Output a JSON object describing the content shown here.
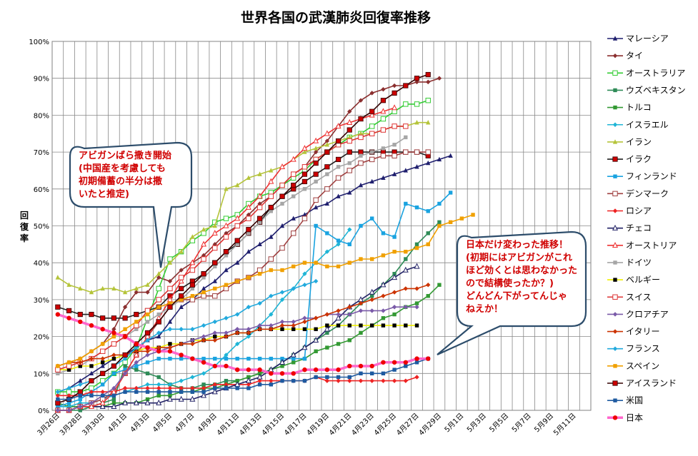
{
  "chart_data": {
    "type": "line",
    "title": "世界各国の武漢肺炎回復率推移",
    "ylabel": "回復率",
    "xlabel": "",
    "ylim": [
      0,
      1
    ],
    "y_ticks": [
      "0%",
      "10%",
      "20%",
      "30%",
      "40%",
      "50%",
      "60%",
      "70%",
      "80%",
      "90%",
      "100%"
    ],
    "x_ticks": [
      "3月26日",
      "3月28日",
      "3月30日",
      "4月1日",
      "4月3日",
      "4月5日",
      "4月7日",
      "4月9日",
      "4月11日",
      "4月13日",
      "4月15日",
      "4月17日",
      "4月19日",
      "4月21日",
      "4月23日",
      "4月25日",
      "4月27日",
      "4月29日",
      "5月1日",
      "5月3日",
      "5月5日",
      "5月7日",
      "5月9日",
      "5月11日"
    ],
    "grid": true,
    "legend_position": "right",
    "series": [
      {
        "name": "マレーシア",
        "color": "#1f1f6e",
        "marker": "triangle",
        "values": [
          0.05,
          0.06,
          0.08,
          0.1,
          0.12,
          0.14,
          0.15,
          0.17,
          0.19,
          0.2,
          0.24,
          0.28,
          0.3,
          0.33,
          0.35,
          0.38,
          0.4,
          0.43,
          0.45,
          0.47,
          0.5,
          0.52,
          0.53,
          0.55,
          0.56,
          0.58,
          0.59,
          0.61,
          0.62,
          0.63,
          0.64,
          0.65,
          0.66,
          0.67,
          0.68,
          0.69
        ]
      },
      {
        "name": "タイ",
        "color": "#8b2f2f",
        "marker": "diamond",
        "values": [
          0.12,
          0.13,
          0.14,
          0.16,
          0.18,
          0.22,
          0.28,
          0.32,
          0.32,
          0.36,
          0.35,
          0.38,
          0.4,
          0.42,
          0.45,
          0.48,
          0.5,
          0.53,
          0.56,
          0.58,
          0.61,
          0.64,
          0.66,
          0.7,
          0.73,
          0.77,
          0.81,
          0.84,
          0.86,
          0.87,
          0.88,
          0.88,
          0.89,
          0.89,
          0.9
        ]
      },
      {
        "name": "オーストラリア",
        "color": "#33cc33",
        "marker": "square-open",
        "values": [
          0.05,
          0.05,
          0.05,
          0.06,
          0.08,
          0.1,
          0.13,
          0.17,
          0.25,
          0.33,
          0.41,
          0.43,
          0.46,
          0.48,
          0.51,
          0.52,
          0.53,
          0.56,
          0.58,
          0.59,
          0.61,
          0.63,
          0.65,
          0.68,
          0.7,
          0.72,
          0.74,
          0.75,
          0.77,
          0.79,
          0.81,
          0.83,
          0.83,
          0.84
        ]
      },
      {
        "name": "ウズベキスタン",
        "color": "#2e8b57",
        "marker": "square",
        "values": [
          0.0,
          0.0,
          0.0,
          0.01,
          0.02,
          0.03,
          0.12,
          0.11,
          0.1,
          0.09,
          0.07,
          0.06,
          0.06,
          0.07,
          0.07,
          0.08,
          0.08,
          0.09,
          0.1,
          0.11,
          0.13,
          0.15,
          0.17,
          0.19,
          0.21,
          0.23,
          0.26,
          0.29,
          0.31,
          0.34,
          0.37,
          0.41,
          0.45,
          0.48,
          0.51
        ]
      },
      {
        "name": "トルコ",
        "color": "#339933",
        "marker": "square",
        "values": [
          0.02,
          0.01,
          0.01,
          0.01,
          0.01,
          0.02,
          0.02,
          0.02,
          0.03,
          0.04,
          0.04,
          0.05,
          0.05,
          0.06,
          0.06,
          0.07,
          0.08,
          0.09,
          0.1,
          0.11,
          0.12,
          0.13,
          0.14,
          0.16,
          0.17,
          0.18,
          0.19,
          0.21,
          0.23,
          0.25,
          0.26,
          0.28,
          0.29,
          0.31,
          0.34
        ]
      },
      {
        "name": "イスラエル",
        "color": "#1fb5d6",
        "marker": "diamond",
        "values": [
          0.01,
          0.01,
          0.02,
          0.02,
          0.03,
          0.04,
          0.05,
          0.06,
          0.07,
          0.07,
          0.07,
          0.08,
          0.09,
          0.1,
          0.12,
          0.15,
          0.18,
          0.2,
          0.23,
          0.26,
          0.3,
          0.33,
          0.37,
          0.4,
          0.43,
          0.45,
          0.49
        ]
      },
      {
        "name": "イラン",
        "color": "#b5c43a",
        "marker": "triangle",
        "values": [
          0.36,
          0.34,
          0.33,
          0.32,
          0.33,
          0.33,
          0.32,
          0.33,
          0.34,
          0.37,
          0.4,
          0.43,
          0.47,
          0.49,
          0.5,
          0.6,
          0.61,
          0.63,
          0.64,
          0.65,
          0.66,
          0.68,
          0.7,
          0.71,
          0.72,
          0.73,
          0.74,
          0.75,
          0.75,
          0.76,
          0.77,
          0.77,
          0.78,
          0.78
        ]
      },
      {
        "name": "イラク",
        "color": "#222222",
        "marker": "square-red",
        "values": [
          0.28,
          0.27,
          0.26,
          0.26,
          0.25,
          0.25,
          0.25,
          0.26,
          0.27,
          0.28,
          0.31,
          0.33,
          0.35,
          0.37,
          0.4,
          0.43,
          0.45,
          0.48,
          0.51,
          0.55,
          0.58,
          0.6,
          0.62,
          0.64,
          0.66,
          0.68,
          0.7,
          0.7,
          0.7,
          0.7,
          0.7,
          0.7,
          0.7,
          0.69
        ]
      },
      {
        "name": "フィンランド",
        "color": "#1aa3e0",
        "marker": "square",
        "values": [
          0.01,
          0.02,
          0.03,
          0.05,
          0.07,
          0.1,
          0.11,
          0.12,
          0.13,
          0.14,
          0.14,
          0.14,
          0.14,
          0.14,
          0.14,
          0.14,
          0.14,
          0.14,
          0.14,
          0.14,
          0.14,
          0.14,
          0.14,
          0.5,
          0.48,
          0.46,
          0.45,
          0.5,
          0.52,
          0.48,
          0.47,
          0.56,
          0.55,
          0.54,
          0.56,
          0.59
        ]
      },
      {
        "name": "デンマーク",
        "color": "#a04040",
        "marker": "square-open",
        "values": [
          0.0,
          0.0,
          0.01,
          0.02,
          0.03,
          0.05,
          0.1,
          0.15,
          0.2,
          0.24,
          0.28,
          0.3,
          0.3,
          0.31,
          0.31,
          0.33,
          0.35,
          0.36,
          0.38,
          0.41,
          0.44,
          0.48,
          0.52,
          0.57,
          0.6,
          0.63,
          0.65,
          0.67,
          0.68,
          0.69,
          0.69,
          0.7,
          0.7,
          0.7
        ]
      },
      {
        "name": "ロシア",
        "color": "#ee2222",
        "marker": "diamond",
        "values": [
          0.04,
          0.04,
          0.04,
          0.05,
          0.05,
          0.05,
          0.06,
          0.06,
          0.06,
          0.06,
          0.06,
          0.06,
          0.06,
          0.06,
          0.07,
          0.07,
          0.07,
          0.07,
          0.08,
          0.08,
          0.08,
          0.08,
          0.08,
          0.09,
          0.08,
          0.08,
          0.08,
          0.08,
          0.08,
          0.08,
          0.08,
          0.08,
          0.09
        ]
      },
      {
        "name": "チェコ",
        "color": "#222266",
        "marker": "triangle-open",
        "values": [
          0.0,
          0.0,
          0.01,
          0.01,
          0.01,
          0.01,
          0.02,
          0.02,
          0.02,
          0.02,
          0.03,
          0.03,
          0.03,
          0.04,
          0.05,
          0.06,
          0.07,
          0.08,
          0.09,
          0.11,
          0.13,
          0.15,
          0.17,
          0.19,
          0.22,
          0.25,
          0.28,
          0.3,
          0.32,
          0.34,
          0.36,
          0.38,
          0.39
        ]
      },
      {
        "name": "オーストリア",
        "color": "#ee3333",
        "marker": "triangle-open",
        "values": [
          0.0,
          0.0,
          0.01,
          0.01,
          0.02,
          0.05,
          0.1,
          0.15,
          0.2,
          0.25,
          0.3,
          0.35,
          0.4,
          0.45,
          0.48,
          0.5,
          0.52,
          0.55,
          0.58,
          0.62,
          0.66,
          0.68,
          0.71,
          0.73,
          0.75,
          0.77,
          0.78,
          0.79,
          0.8,
          0.81,
          0.82
        ]
      },
      {
        "name": "ドイツ",
        "color": "#a6a6a6",
        "marker": "square",
        "values": [
          0.1,
          0.11,
          0.12,
          0.14,
          0.16,
          0.18,
          0.2,
          0.22,
          0.24,
          0.26,
          0.28,
          0.3,
          0.33,
          0.36,
          0.39,
          0.42,
          0.45,
          0.48,
          0.51,
          0.54,
          0.56,
          0.58,
          0.6,
          0.62,
          0.64,
          0.66,
          0.67,
          0.69,
          0.7,
          0.71,
          0.72,
          0.74
        ]
      },
      {
        "name": "ベルギー",
        "color": "#f0f000",
        "marker": "square-black",
        "values": [
          0.11,
          0.11,
          0.12,
          0.12,
          0.13,
          0.14,
          0.15,
          0.16,
          0.17,
          0.17,
          0.18,
          0.18,
          0.19,
          0.19,
          0.2,
          0.2,
          0.21,
          0.21,
          0.22,
          0.22,
          0.22,
          0.22,
          0.22,
          0.22,
          0.23,
          0.23,
          0.23,
          0.23,
          0.23,
          0.23,
          0.23,
          0.23,
          0.23
        ]
      },
      {
        "name": "スイス",
        "color": "#dd3333",
        "marker": "square-open",
        "values": [
          0.11,
          0.12,
          0.13,
          0.14,
          0.16,
          0.18,
          0.2,
          0.23,
          0.27,
          0.3,
          0.33,
          0.36,
          0.38,
          0.41,
          0.44,
          0.47,
          0.5,
          0.52,
          0.55,
          0.58,
          0.61,
          0.64,
          0.66,
          0.68,
          0.7,
          0.72,
          0.73,
          0.74,
          0.75,
          0.76,
          0.77,
          0.77
        ]
      },
      {
        "name": "クロアチア",
        "color": "#7a5aa8",
        "marker": "diamond",
        "values": [
          0.0,
          0.0,
          0.01,
          0.02,
          0.04,
          0.06,
          0.1,
          0.13,
          0.15,
          0.16,
          0.17,
          0.18,
          0.19,
          0.2,
          0.21,
          0.21,
          0.22,
          0.22,
          0.23,
          0.23,
          0.24,
          0.24,
          0.25,
          0.25,
          0.26,
          0.26,
          0.26,
          0.27,
          0.27,
          0.27,
          0.28,
          0.28,
          0.28
        ]
      },
      {
        "name": "イタリー",
        "color": "#cc3300",
        "marker": "diamond",
        "values": [
          0.12,
          0.13,
          0.13,
          0.14,
          0.14,
          0.15,
          0.15,
          0.16,
          0.16,
          0.17,
          0.17,
          0.18,
          0.18,
          0.19,
          0.19,
          0.2,
          0.21,
          0.21,
          0.22,
          0.22,
          0.23,
          0.23,
          0.24,
          0.25,
          0.26,
          0.27,
          0.28,
          0.29,
          0.3,
          0.31,
          0.32,
          0.33,
          0.33,
          0.34
        ]
      },
      {
        "name": "フランス",
        "color": "#22aadd",
        "marker": "diamond",
        "values": [
          0.05,
          0.06,
          0.07,
          0.08,
          0.1,
          0.12,
          0.14,
          0.17,
          0.19,
          0.21,
          0.22,
          0.22,
          0.22,
          0.23,
          0.24,
          0.25,
          0.26,
          0.28,
          0.29,
          0.31,
          0.32,
          0.33,
          0.34,
          0.35
        ]
      },
      {
        "name": "スペイン",
        "color": "#f0a000",
        "marker": "square",
        "values": [
          0.12,
          0.13,
          0.14,
          0.16,
          0.18,
          0.2,
          0.22,
          0.24,
          0.26,
          0.28,
          0.29,
          0.3,
          0.31,
          0.32,
          0.33,
          0.34,
          0.35,
          0.36,
          0.37,
          0.38,
          0.38,
          0.39,
          0.4,
          0.4,
          0.39,
          0.39,
          0.4,
          0.41,
          0.41,
          0.42,
          0.43,
          0.43,
          0.44,
          0.45,
          0.5,
          0.51,
          0.52,
          0.53
        ]
      },
      {
        "name": "アイスランド",
        "color": "#330000",
        "marker": "square-red",
        "values": [
          0.02,
          0.03,
          0.05,
          0.08,
          0.1,
          0.12,
          0.15,
          0.18,
          0.21,
          0.24,
          0.28,
          0.31,
          0.34,
          0.37,
          0.4,
          0.43,
          0.46,
          0.49,
          0.52,
          0.55,
          0.58,
          0.61,
          0.64,
          0.67,
          0.7,
          0.73,
          0.76,
          0.79,
          0.81,
          0.84,
          0.86,
          0.88,
          0.9,
          0.91
        ]
      },
      {
        "name": "米国",
        "color": "#1e5aa0",
        "marker": "square",
        "values": [
          0.03,
          0.03,
          0.04,
          0.04,
          0.04,
          0.04,
          0.05,
          0.05,
          0.05,
          0.05,
          0.05,
          0.05,
          0.05,
          0.05,
          0.06,
          0.06,
          0.06,
          0.06,
          0.07,
          0.07,
          0.08,
          0.08,
          0.08,
          0.09,
          0.09,
          0.09,
          0.09,
          0.1,
          0.1,
          0.1,
          0.11,
          0.12,
          0.13,
          0.14
        ]
      },
      {
        "name": "日本",
        "color": "#ff66cc",
        "marker": "circle-red",
        "values": [
          0.26,
          0.25,
          0.24,
          0.23,
          0.22,
          0.21,
          0.2,
          0.18,
          0.17,
          0.16,
          0.16,
          0.15,
          0.14,
          0.13,
          0.12,
          0.12,
          0.11,
          0.11,
          0.11,
          0.1,
          0.1,
          0.1,
          0.11,
          0.11,
          0.11,
          0.11,
          0.12,
          0.12,
          0.12,
          0.13,
          0.13,
          0.13,
          0.14,
          0.14
        ]
      }
    ],
    "annotations": [
      {
        "text": "アビガンばら撒き開始\n(中国産を考慮しても\n初期備蓄の半分は撒\nいたと推定)"
      },
      {
        "text": "日本だけ変わった推移！\n(初期にはアビガンがこれ\nほど効くとは思わなかった\nので結構使ったか？)\nどんどん下がってんじゃ\nねえか！"
      }
    ]
  }
}
